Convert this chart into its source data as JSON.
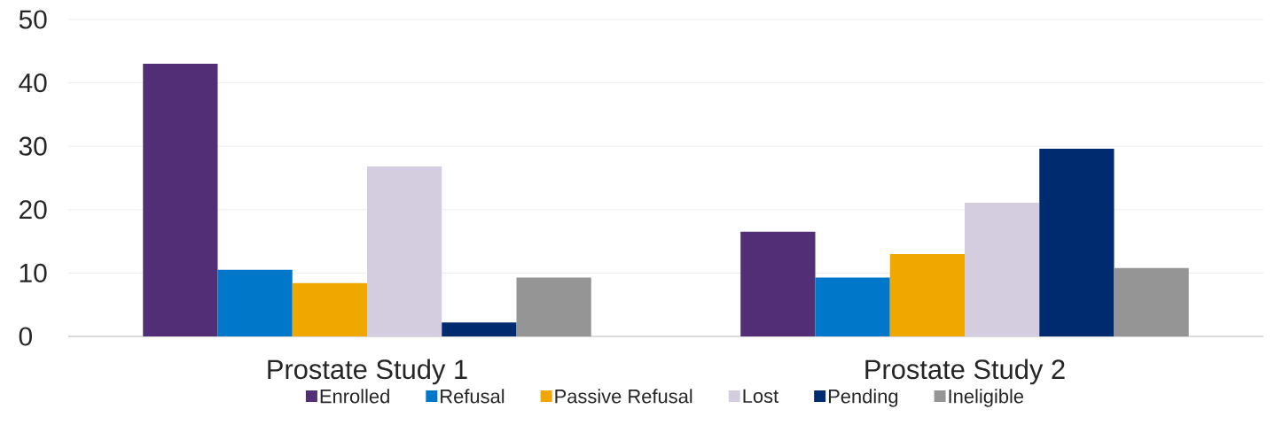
{
  "chart_data": {
    "type": "bar",
    "categories": [
      "Prostate Study 1",
      "Prostate Study 2"
    ],
    "series": [
      {
        "name": "Enrolled",
        "color": "#522e76",
        "values": [
          43,
          16.5
        ]
      },
      {
        "name": "Refusal",
        "color": "#0077c8",
        "values": [
          10.5,
          9.3
        ]
      },
      {
        "name": "Passive Refusal",
        "color": "#f0a800",
        "values": [
          8.4,
          13
        ]
      },
      {
        "name": "Lost",
        "color": "#d4cde0",
        "values": [
          26.8,
          21.1
        ]
      },
      {
        "name": "Pending",
        "color": "#002b6e",
        "values": [
          2.2,
          29.6
        ]
      },
      {
        "name": "Ineligible",
        "color": "#959595",
        "values": [
          9.3,
          10.8
        ]
      }
    ],
    "ylim": [
      0,
      50
    ],
    "yticks": [
      0,
      10,
      20,
      30,
      40,
      50
    ],
    "grid": "y",
    "legend": "bottom"
  }
}
